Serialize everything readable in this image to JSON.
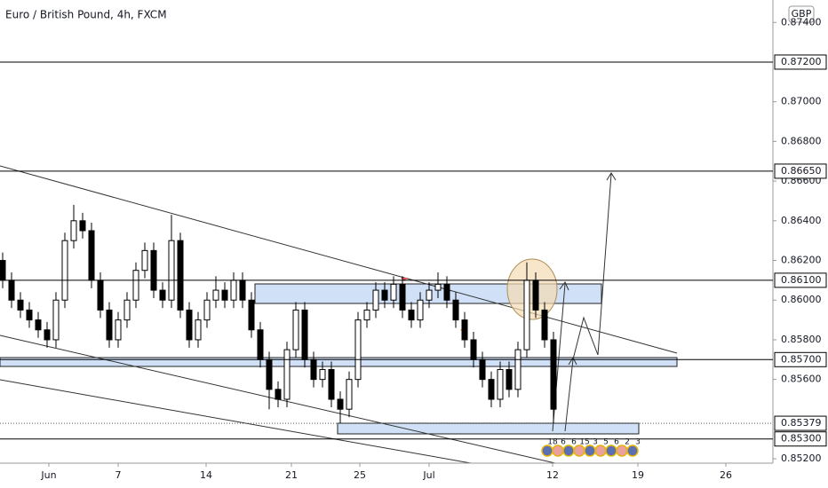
{
  "chart_data": {
    "type": "candlestick",
    "title": "Euro / British Pound, 4h, FXCM",
    "currency": "GBP",
    "x": [
      0,
      1,
      2,
      3,
      4,
      5,
      6,
      7,
      8,
      9,
      10,
      11,
      12,
      13,
      14,
      15,
      16,
      17,
      18,
      19,
      20,
      21,
      22,
      23,
      24,
      25,
      26,
      27,
      28,
      29,
      30,
      31,
      32,
      33,
      34,
      35,
      36,
      37,
      38,
      39,
      40,
      41,
      42,
      43,
      44,
      45,
      46,
      47,
      48,
      49,
      50,
      51,
      52,
      53,
      54,
      55,
      56,
      57,
      58,
      59,
      60,
      61,
      62
    ],
    "open": [
      0.862,
      0.861,
      0.86,
      0.8595,
      0.859,
      0.8585,
      0.858,
      0.86,
      0.863,
      0.864,
      0.8635,
      0.861,
      0.8595,
      0.858,
      0.859,
      0.86,
      0.8615,
      0.8625,
      0.8605,
      0.86,
      0.863,
      0.8595,
      0.858,
      0.859,
      0.86,
      0.8605,
      0.86,
      0.861,
      0.86,
      0.8585,
      0.857,
      0.8555,
      0.855,
      0.8575,
      0.8595,
      0.857,
      0.856,
      0.8565,
      0.855,
      0.8545,
      0.856,
      0.859,
      0.8595,
      0.8605,
      0.86,
      0.8608,
      0.8595,
      0.859,
      0.86,
      0.8605,
      0.8608,
      0.86,
      0.859,
      0.858,
      0.857,
      0.856,
      0.855,
      0.8565,
      0.8555,
      0.8575,
      0.861,
      0.8595,
      0.858
    ],
    "high": [
      0.8624,
      0.8614,
      0.8604,
      0.8599,
      0.8594,
      0.8589,
      0.8604,
      0.8634,
      0.8648,
      0.8644,
      0.8639,
      0.8614,
      0.8599,
      0.8594,
      0.8604,
      0.8619,
      0.8629,
      0.8629,
      0.8609,
      0.8643,
      0.8634,
      0.8599,
      0.8594,
      0.8604,
      0.8612,
      0.8609,
      0.8614,
      0.8614,
      0.8604,
      0.8589,
      0.8574,
      0.8559,
      0.8579,
      0.8599,
      0.8599,
      0.8574,
      0.8569,
      0.8569,
      0.8554,
      0.8564,
      0.8594,
      0.8599,
      0.8609,
      0.8609,
      0.8612,
      0.8612,
      0.8599,
      0.8604,
      0.8609,
      0.8614,
      0.8612,
      0.8604,
      0.8594,
      0.8584,
      0.8574,
      0.8564,
      0.8569,
      0.8569,
      0.8579,
      0.8619,
      0.8614,
      0.8599,
      0.8584
    ],
    "low": [
      0.8606,
      0.8596,
      0.8591,
      0.8586,
      0.8581,
      0.8576,
      0.8576,
      0.8596,
      0.8626,
      0.8631,
      0.8606,
      0.8591,
      0.8576,
      0.8576,
      0.8586,
      0.8596,
      0.8611,
      0.8601,
      0.8596,
      0.8596,
      0.8591,
      0.8576,
      0.8576,
      0.8586,
      0.8596,
      0.8596,
      0.8596,
      0.8596,
      0.8581,
      0.8566,
      0.8545,
      0.8546,
      0.8546,
      0.8571,
      0.8566,
      0.8556,
      0.8556,
      0.8546,
      0.8538,
      0.8541,
      0.8556,
      0.8586,
      0.8591,
      0.8596,
      0.8596,
      0.8591,
      0.8586,
      0.8586,
      0.8596,
      0.8601,
      0.8596,
      0.8586,
      0.8576,
      0.8566,
      0.8556,
      0.8546,
      0.8546,
      0.8551,
      0.8551,
      0.8571,
      0.8591,
      0.8576,
      0.8538
    ],
    "close": [
      0.861,
      0.86,
      0.8595,
      0.859,
      0.8585,
      0.858,
      0.86,
      0.863,
      0.864,
      0.8635,
      0.861,
      0.8595,
      0.858,
      0.859,
      0.86,
      0.8615,
      0.8625,
      0.8605,
      0.86,
      0.863,
      0.8595,
      0.858,
      0.859,
      0.86,
      0.8605,
      0.86,
      0.861,
      0.86,
      0.8585,
      0.857,
      0.8555,
      0.855,
      0.8575,
      0.8595,
      0.857,
      0.856,
      0.8565,
      0.855,
      0.8545,
      0.856,
      0.859,
      0.8595,
      0.8605,
      0.86,
      0.8608,
      0.8595,
      0.859,
      0.86,
      0.8605,
      0.8608,
      0.86,
      0.859,
      0.858,
      0.857,
      0.856,
      0.855,
      0.8565,
      0.8555,
      0.8575,
      0.861,
      0.8595,
      0.858,
      0.8545
    ],
    "xlim": [
      0,
      87
    ],
    "xticks": [
      {
        "value": 5.5,
        "label": "Jun"
      },
      {
        "value": 13.3,
        "label": "7"
      },
      {
        "value": 23.2,
        "label": "14"
      },
      {
        "value": 32.8,
        "label": "21"
      },
      {
        "value": 40.5,
        "label": "25"
      },
      {
        "value": 48.3,
        "label": "Jul"
      },
      {
        "value": 62.2,
        "label": "12"
      },
      {
        "value": 71.8,
        "label": "19"
      },
      {
        "value": 81.7,
        "label": "26"
      }
    ],
    "ylim": [
      0.85178,
      0.87513
    ],
    "yticks": [
      {
        "value": 0.874,
        "label": "0.87400"
      },
      {
        "value": 0.87,
        "label": "0.87000"
      },
      {
        "value": 0.868,
        "label": "0.86800"
      },
      {
        "value": 0.866,
        "label": "0.86600"
      },
      {
        "value": 0.864,
        "label": "0.86400"
      },
      {
        "value": 0.862,
        "label": "0.86200"
      },
      {
        "value": 0.86,
        "label": "0.86000"
      },
      {
        "value": 0.858,
        "label": "0.85800"
      },
      {
        "value": 0.856,
        "label": "0.85600"
      },
      {
        "value": 0.852,
        "label": "0.85200"
      }
    ],
    "levels": [
      {
        "value": 0.872,
        "label": "0.87200"
      },
      {
        "value": 0.8665,
        "label": "0.86650"
      },
      {
        "value": 0.861,
        "label": "0.86100"
      },
      {
        "value": 0.857,
        "label": "0.85700"
      },
      {
        "value": 0.85379,
        "label": "0.85379",
        "dashed": true
      },
      {
        "value": 0.853,
        "label": "0.85300"
      }
    ],
    "events": [
      "18",
      "6",
      "6",
      "15",
      "3",
      "5",
      "6",
      "2",
      "3"
    ],
    "up_color": "#ffffff",
    "down_color": "#000000"
  }
}
